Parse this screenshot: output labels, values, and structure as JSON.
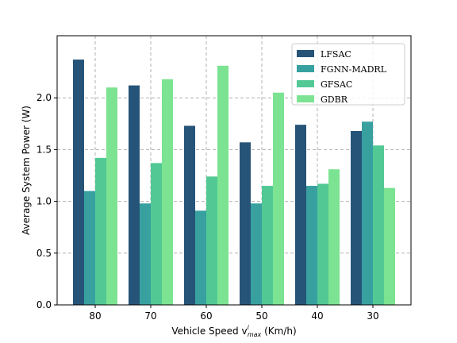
{
  "chart_data": {
    "type": "bar",
    "categories": [
      "80",
      "70",
      "60",
      "50",
      "40",
      "30"
    ],
    "series": [
      {
        "name": "LFSAC",
        "color": "#265478",
        "values": [
          2.37,
          2.12,
          1.73,
          1.57,
          1.74,
          1.68
        ]
      },
      {
        "name": "FGNN-MADRL",
        "color": "#38a1a0",
        "values": [
          1.1,
          0.98,
          0.91,
          0.98,
          1.15,
          1.77
        ]
      },
      {
        "name": "GFSAC",
        "color": "#52c995",
        "values": [
          1.42,
          1.37,
          1.24,
          1.15,
          1.17,
          1.54
        ]
      },
      {
        "name": "GDBR",
        "color": "#7be391",
        "values": [
          2.1,
          2.18,
          2.31,
          2.05,
          1.31,
          1.13
        ]
      }
    ],
    "xlabel": "Vehicle Speed v",
    "xlabel_sup": "i",
    "xlabel_sub": "max",
    "xlabel_unit": " (Km/h)",
    "ylabel": "Average System Power (W)",
    "ylim": [
      0,
      2.6
    ],
    "yticks": [
      "0.0",
      "0.5",
      "1.0",
      "1.5",
      "2.0"
    ],
    "grid": true,
    "legend_position": "top-right"
  }
}
